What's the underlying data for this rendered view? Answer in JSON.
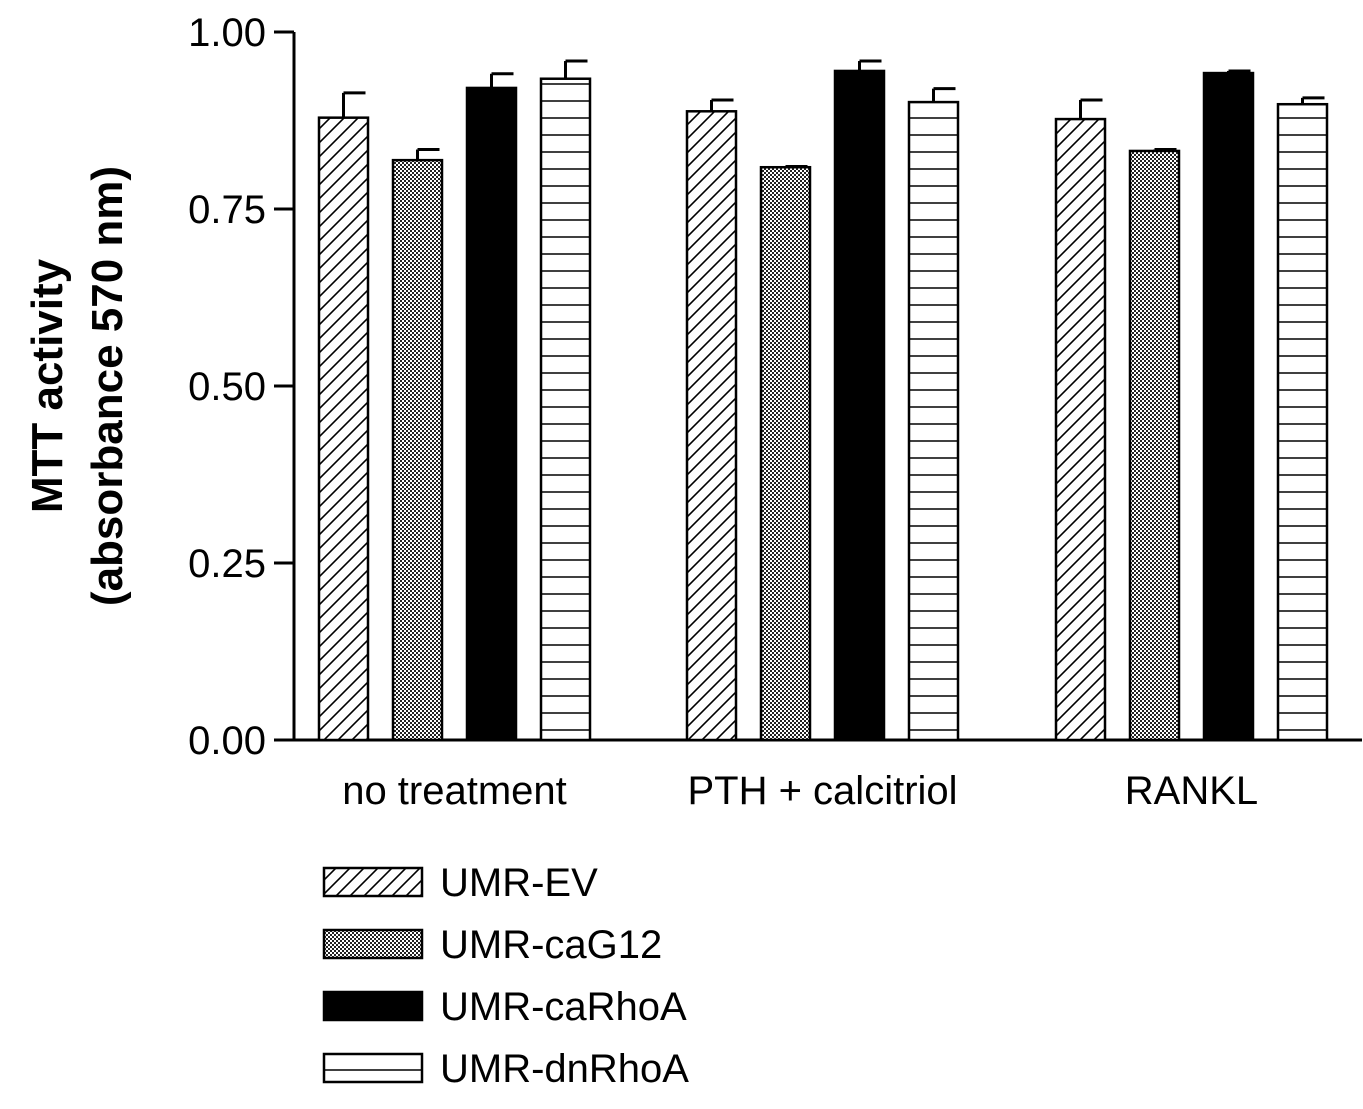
{
  "chart_data": {
    "type": "bar",
    "categories": [
      "no treatment",
      "PTH + calcitriol",
      "RANKL"
    ],
    "ylabel_lines": [
      "MTT activity",
      "(absorbance 570 nm)"
    ],
    "xlabel": "",
    "ylim": [
      0,
      1.0
    ],
    "yticks": [
      "0.00",
      "0.25",
      "0.50",
      "0.75",
      "1.00"
    ],
    "ytick_values": [
      0,
      0.25,
      0.5,
      0.75,
      1.0
    ],
    "grid": false,
    "legend_position": "bottom",
    "series": [
      {
        "name": "UMR-EV",
        "pattern": "diagonal-hatch",
        "values": [
          0.879,
          0.888,
          0.877
        ],
        "errors": [
          0.035,
          0.016,
          0.027
        ]
      },
      {
        "name": "UMR-caG12",
        "pattern": "crosshatch-dense",
        "values": [
          0.819,
          0.809,
          0.832
        ],
        "errors": [
          0.015,
          0.001,
          0.002
        ]
      },
      {
        "name": "UMR-caRhoA",
        "pattern": "solid",
        "color": "#000000",
        "values": [
          0.921,
          0.945,
          0.942
        ],
        "errors": [
          0.02,
          0.014,
          0.003
        ]
      },
      {
        "name": "UMR-dnRhoA",
        "pattern": "horizontal-hatch",
        "values": [
          0.934,
          0.901,
          0.898
        ],
        "errors": [
          0.025,
          0.019,
          0.009
        ]
      }
    ]
  }
}
